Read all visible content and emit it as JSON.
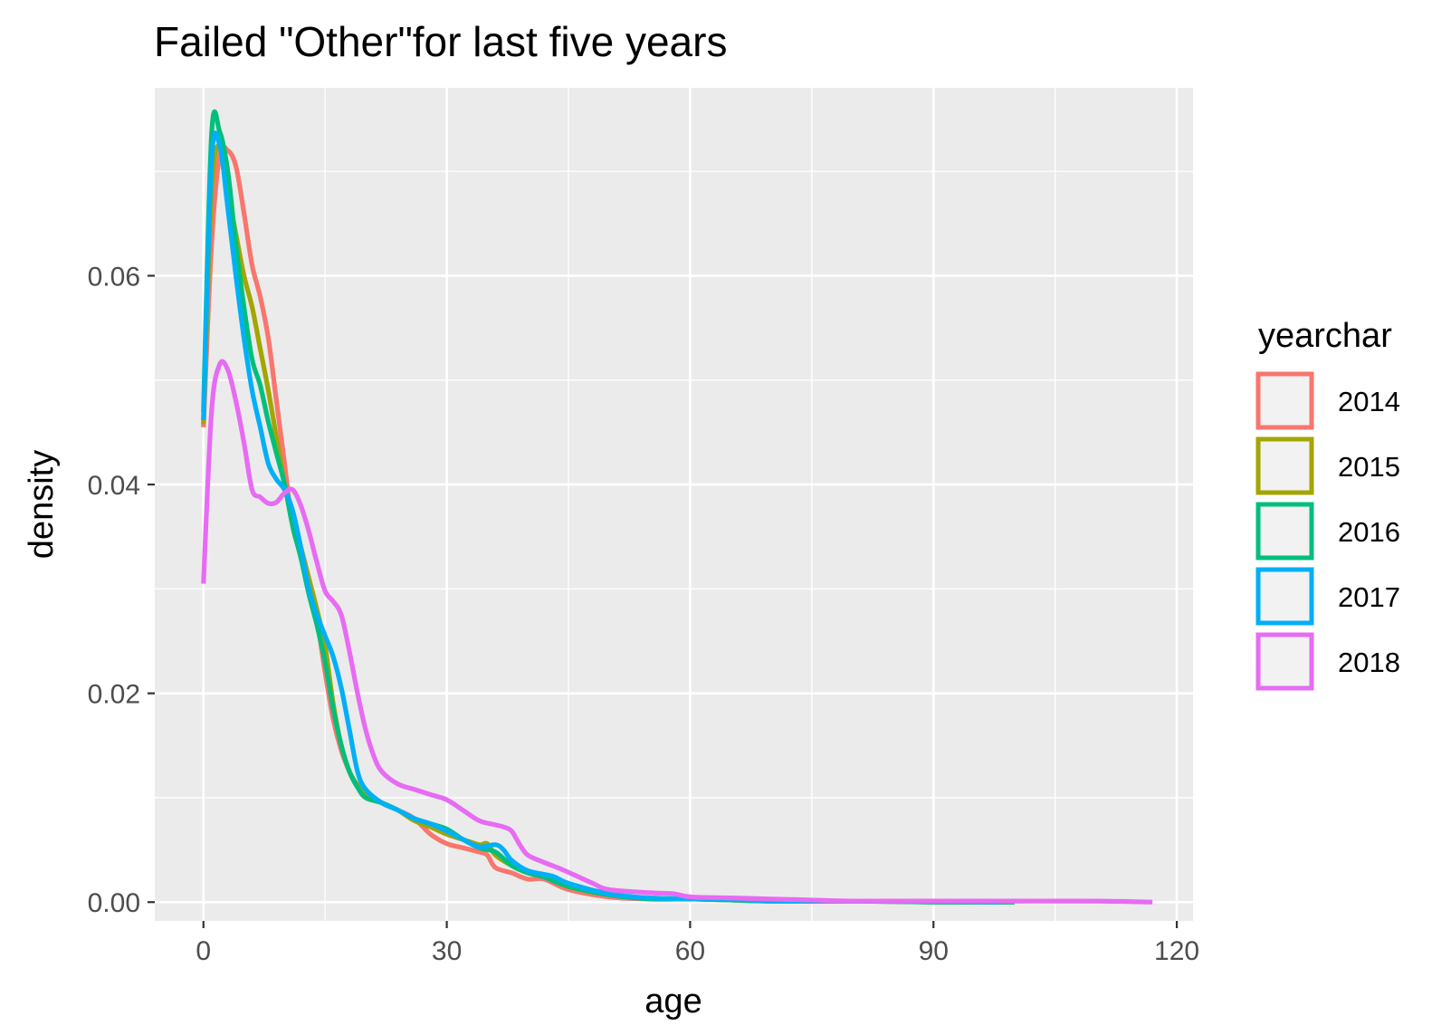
{
  "chart_data": {
    "type": "line",
    "title": "Failed \"Other\"for last five years",
    "xlabel": "age",
    "ylabel": "density",
    "xlim": [
      -6,
      122
    ],
    "ylim": [
      -0.0018,
      0.078
    ],
    "x_ticks": [
      0,
      30,
      60,
      90,
      120
    ],
    "x_tick_labels": [
      "0",
      "30",
      "60",
      "90",
      "120"
    ],
    "y_ticks": [
      0.0,
      0.02,
      0.04,
      0.06
    ],
    "y_tick_labels": [
      "0.00",
      "0.02",
      "0.04",
      "0.06"
    ],
    "grid": true,
    "panel_background": "#ebebeb",
    "legend": {
      "title": "yearchar",
      "position": "right"
    },
    "series": [
      {
        "name": "2014",
        "color": "#F8766D",
        "points": [
          [
            0,
            0.0455
          ],
          [
            1,
            0.063
          ],
          [
            2,
            0.0715
          ],
          [
            3,
            0.072
          ],
          [
            4,
            0.0705
          ],
          [
            5,
            0.066
          ],
          [
            6,
            0.061
          ],
          [
            7,
            0.058
          ],
          [
            8,
            0.054
          ],
          [
            9,
            0.048
          ],
          [
            10,
            0.042
          ],
          [
            11,
            0.036
          ],
          [
            12,
            0.0335
          ],
          [
            13,
            0.031
          ],
          [
            14,
            0.027
          ],
          [
            15,
            0.022
          ],
          [
            16,
            0.0175
          ],
          [
            17,
            0.0145
          ],
          [
            18,
            0.0125
          ],
          [
            19,
            0.011
          ],
          [
            20,
            0.0102
          ],
          [
            22,
            0.0095
          ],
          [
            24,
            0.0088
          ],
          [
            26,
            0.008
          ],
          [
            28,
            0.0065
          ],
          [
            30,
            0.0056
          ],
          [
            32,
            0.0052
          ],
          [
            34,
            0.0048
          ],
          [
            35,
            0.0045
          ],
          [
            36,
            0.0033
          ],
          [
            38,
            0.0028
          ],
          [
            40,
            0.0022
          ],
          [
            42,
            0.0022
          ],
          [
            45,
            0.0012
          ],
          [
            50,
            0.0005
          ],
          [
            55,
            0.0003
          ],
          [
            60,
            0.0003
          ],
          [
            65,
            0.0002
          ],
          [
            70,
            0.0001
          ],
          [
            80,
            0.0001
          ],
          [
            90,
            0.0
          ],
          [
            100,
            0.0
          ]
        ]
      },
      {
        "name": "2015",
        "color": "#A3A500",
        "points": [
          [
            0,
            0.0458
          ],
          [
            1,
            0.068
          ],
          [
            2,
            0.0725
          ],
          [
            3,
            0.068
          ],
          [
            4,
            0.064
          ],
          [
            5,
            0.06
          ],
          [
            6,
            0.057
          ],
          [
            7,
            0.053
          ],
          [
            8,
            0.049
          ],
          [
            9,
            0.0445
          ],
          [
            10,
            0.04
          ],
          [
            11,
            0.0365
          ],
          [
            12,
            0.034
          ],
          [
            13,
            0.031
          ],
          [
            14,
            0.028
          ],
          [
            15,
            0.0245
          ],
          [
            16,
            0.019
          ],
          [
            17,
            0.015
          ],
          [
            18,
            0.0125
          ],
          [
            19,
            0.0112
          ],
          [
            20,
            0.0103
          ],
          [
            22,
            0.0095
          ],
          [
            24,
            0.0088
          ],
          [
            26,
            0.0078
          ],
          [
            28,
            0.0072
          ],
          [
            30,
            0.0065
          ],
          [
            32,
            0.006
          ],
          [
            34,
            0.0055
          ],
          [
            35,
            0.0056
          ],
          [
            36,
            0.0045
          ],
          [
            38,
            0.0035
          ],
          [
            40,
            0.0028
          ],
          [
            42,
            0.0025
          ],
          [
            45,
            0.0015
          ],
          [
            50,
            0.0007
          ],
          [
            55,
            0.0004
          ],
          [
            60,
            0.0003
          ],
          [
            65,
            0.0002
          ],
          [
            70,
            0.0001
          ],
          [
            80,
            0.0001
          ],
          [
            90,
            0.0001
          ],
          [
            98,
            0.0
          ]
        ]
      },
      {
        "name": "2016",
        "color": "#00BF7D",
        "points": [
          [
            0,
            0.047
          ],
          [
            1,
            0.0735
          ],
          [
            2,
            0.0738
          ],
          [
            3,
            0.07
          ],
          [
            4,
            0.063
          ],
          [
            5,
            0.057
          ],
          [
            6,
            0.052
          ],
          [
            7,
            0.0495
          ],
          [
            8,
            0.046
          ],
          [
            9,
            0.043
          ],
          [
            10,
            0.04
          ],
          [
            11,
            0.036
          ],
          [
            12,
            0.033
          ],
          [
            13,
            0.0295
          ],
          [
            14,
            0.0265
          ],
          [
            15,
            0.023
          ],
          [
            16,
            0.0185
          ],
          [
            17,
            0.015
          ],
          [
            18,
            0.0125
          ],
          [
            19,
            0.011
          ],
          [
            20,
            0.01
          ],
          [
            22,
            0.0095
          ],
          [
            24,
            0.0088
          ],
          [
            26,
            0.008
          ],
          [
            28,
            0.0075
          ],
          [
            30,
            0.007
          ],
          [
            32,
            0.006
          ],
          [
            34,
            0.0052
          ],
          [
            36,
            0.0048
          ],
          [
            38,
            0.0035
          ],
          [
            40,
            0.0028
          ],
          [
            42,
            0.0024
          ],
          [
            45,
            0.0015
          ],
          [
            50,
            0.0007
          ],
          [
            55,
            0.0003
          ],
          [
            60,
            0.0003
          ],
          [
            65,
            0.0002
          ],
          [
            70,
            0.0001
          ],
          [
            80,
            0.0001
          ],
          [
            90,
            0.0
          ],
          [
            100,
            0.0
          ]
        ]
      },
      {
        "name": "2017",
        "color": "#00B0F6",
        "points": [
          [
            0,
            0.0462
          ],
          [
            1,
            0.071
          ],
          [
            2,
            0.0725
          ],
          [
            3,
            0.0665
          ],
          [
            4,
            0.06
          ],
          [
            5,
            0.054
          ],
          [
            6,
            0.049
          ],
          [
            7,
            0.0455
          ],
          [
            8,
            0.042
          ],
          [
            9,
            0.0405
          ],
          [
            10,
            0.0395
          ],
          [
            11,
            0.0375
          ],
          [
            12,
            0.034
          ],
          [
            13,
            0.03
          ],
          [
            14,
            0.0275
          ],
          [
            15,
            0.0255
          ],
          [
            16,
            0.0235
          ],
          [
            17,
            0.0205
          ],
          [
            18,
            0.0165
          ],
          [
            19,
            0.0125
          ],
          [
            20,
            0.0108
          ],
          [
            22,
            0.0095
          ],
          [
            24,
            0.0088
          ],
          [
            26,
            0.008
          ],
          [
            28,
            0.0075
          ],
          [
            30,
            0.0068
          ],
          [
            32,
            0.006
          ],
          [
            34,
            0.0053
          ],
          [
            36,
            0.0055
          ],
          [
            37,
            0.005
          ],
          [
            38,
            0.004
          ],
          [
            40,
            0.003
          ],
          [
            43,
            0.0025
          ],
          [
            45,
            0.0018
          ],
          [
            50,
            0.0008
          ],
          [
            55,
            0.0004
          ],
          [
            60,
            0.0003
          ],
          [
            65,
            0.0003
          ],
          [
            70,
            0.0001
          ],
          [
            80,
            0.0001
          ],
          [
            90,
            0.0001
          ],
          [
            98,
            0.0
          ]
        ]
      },
      {
        "name": "2018",
        "color": "#E76BF3",
        "points": [
          [
            0,
            0.0305
          ],
          [
            1,
            0.047
          ],
          [
            2,
            0.0515
          ],
          [
            3,
            0.051
          ],
          [
            4,
            0.048
          ],
          [
            5,
            0.044
          ],
          [
            6,
            0.0395
          ],
          [
            7,
            0.0388
          ],
          [
            8,
            0.0382
          ],
          [
            9,
            0.0383
          ],
          [
            10,
            0.0392
          ],
          [
            11,
            0.0395
          ],
          [
            12,
            0.038
          ],
          [
            13,
            0.0355
          ],
          [
            14,
            0.0325
          ],
          [
            15,
            0.0298
          ],
          [
            16,
            0.0288
          ],
          [
            17,
            0.0275
          ],
          [
            18,
            0.024
          ],
          [
            19,
            0.02
          ],
          [
            20,
            0.0165
          ],
          [
            21,
            0.014
          ],
          [
            22,
            0.0125
          ],
          [
            24,
            0.0113
          ],
          [
            26,
            0.0108
          ],
          [
            28,
            0.0103
          ],
          [
            30,
            0.0098
          ],
          [
            32,
            0.0088
          ],
          [
            34,
            0.0078
          ],
          [
            36,
            0.0074
          ],
          [
            37,
            0.0072
          ],
          [
            38,
            0.0068
          ],
          [
            39,
            0.0055
          ],
          [
            40,
            0.0045
          ],
          [
            42,
            0.0038
          ],
          [
            44,
            0.0032
          ],
          [
            46,
            0.0025
          ],
          [
            48,
            0.0018
          ],
          [
            50,
            0.0012
          ],
          [
            55,
            0.0009
          ],
          [
            58,
            0.0008
          ],
          [
            60,
            0.0005
          ],
          [
            65,
            0.0004
          ],
          [
            70,
            0.0003
          ],
          [
            75,
            0.0002
          ],
          [
            80,
            0.0001
          ],
          [
            90,
            0.0001
          ],
          [
            100,
            0.0001
          ],
          [
            110,
            0.0001
          ],
          [
            117,
            0.0
          ]
        ]
      }
    ]
  }
}
